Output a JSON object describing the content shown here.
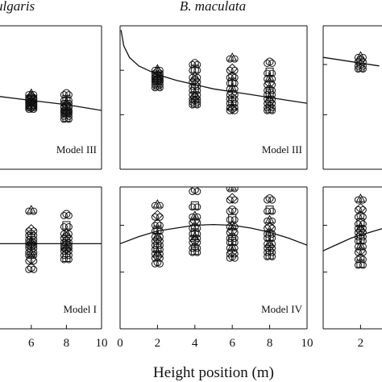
{
  "figure": {
    "species_left": "ulgaris",
    "species_center": "B. maculata",
    "xlabel": "Height position (m)"
  },
  "chart_data": [
    {
      "type": "scatter",
      "id": "top-left",
      "annotation": "Model III",
      "xlim": [
        0,
        10
      ],
      "x_ticks": [],
      "x_tick_labels": [],
      "points": [
        {
          "x": 6,
          "ys": [
            0.53,
            0.51,
            0.5,
            0.49,
            0.48,
            0.47,
            0.46,
            0.45,
            0.44,
            0.43
          ]
        },
        {
          "x": 8,
          "ys": [
            0.53,
            0.49,
            0.47,
            0.45,
            0.44,
            0.42,
            0.41,
            0.4,
            0.38,
            0.36
          ]
        }
      ],
      "curve": {
        "x": [
          0,
          2,
          4,
          6,
          8,
          10
        ],
        "y": [
          0.6,
          0.55,
          0.51,
          0.48,
          0.45,
          0.41
        ]
      }
    },
    {
      "type": "scatter",
      "id": "top-center",
      "annotation": "Model III",
      "xlim": [
        0,
        10
      ],
      "x_ticks": [],
      "x_tick_labels": [],
      "points": [
        {
          "x": 2,
          "ys": [
            0.7,
            0.68,
            0.66,
            0.65,
            0.64,
            0.63,
            0.62,
            0.6,
            0.58
          ]
        },
        {
          "x": 4,
          "ys": [
            0.74,
            0.7,
            0.65,
            0.62,
            0.59,
            0.56,
            0.53,
            0.5,
            0.48,
            0.46
          ]
        },
        {
          "x": 6,
          "ys": [
            0.78,
            0.7,
            0.65,
            0.61,
            0.57,
            0.53,
            0.5,
            0.47,
            0.44,
            0.42
          ]
        },
        {
          "x": 8,
          "ys": [
            0.75,
            0.68,
            0.64,
            0.6,
            0.56,
            0.53,
            0.5,
            0.47,
            0.44,
            0.42
          ]
        }
      ],
      "curve": {
        "x": [
          0.05,
          0.2,
          0.5,
          1,
          1.5,
          2,
          3,
          4,
          5,
          6,
          7,
          8,
          9,
          10
        ],
        "y": [
          0.97,
          0.86,
          0.78,
          0.72,
          0.69,
          0.66,
          0.62,
          0.59,
          0.56,
          0.54,
          0.52,
          0.5,
          0.48,
          0.46
        ]
      }
    },
    {
      "type": "scatter",
      "id": "top-right",
      "annotation": "",
      "xlim": [
        0,
        10
      ],
      "x_ticks": [],
      "x_tick_labels": [],
      "points": [
        {
          "x": 2,
          "ys": [
            0.79,
            0.76,
            0.73,
            0.71
          ]
        }
      ],
      "curve": {
        "x": [
          0,
          1,
          2,
          3
        ],
        "y": [
          0.78,
          0.76,
          0.74,
          0.72
        ]
      }
    },
    {
      "type": "scatter",
      "id": "bottom-left",
      "annotation": "Model I",
      "xlim": [
        0,
        10
      ],
      "x_ticks": [
        6,
        8,
        10
      ],
      "x_tick_labels": [
        "6",
        "8",
        "10"
      ],
      "points": [
        {
          "x": 6,
          "ys": [
            0.84,
            0.7,
            0.67,
            0.64,
            0.62,
            0.6,
            0.58,
            0.55,
            0.53,
            0.49,
            0.43
          ]
        },
        {
          "x": 8,
          "ys": [
            0.81,
            0.73,
            0.68,
            0.65,
            0.62,
            0.6,
            0.58,
            0.56,
            0.53,
            0.5
          ]
        }
      ],
      "curve": {
        "x": [
          0,
          10
        ],
        "y": [
          0.6,
          0.6
        ]
      }
    },
    {
      "type": "scatter",
      "id": "bottom-center",
      "annotation": "Model IV",
      "xlim": [
        0,
        10
      ],
      "x_ticks": [
        0,
        2,
        4,
        6,
        8,
        10
      ],
      "x_tick_labels": [
        "0",
        "2",
        "4",
        "6",
        "8",
        "10"
      ],
      "points": [
        {
          "x": 2,
          "ys": [
            0.88,
            0.8,
            0.74,
            0.7,
            0.66,
            0.63,
            0.6,
            0.57,
            0.54,
            0.51,
            0.47
          ]
        },
        {
          "x": 4,
          "ys": [
            0.98,
            0.87,
            0.8,
            0.76,
            0.72,
            0.68,
            0.65,
            0.62,
            0.58,
            0.55
          ]
        },
        {
          "x": 6,
          "ys": [
            1.0,
            0.92,
            0.84,
            0.78,
            0.73,
            0.69,
            0.65,
            0.62,
            0.58,
            0.54,
            0.51
          ]
        },
        {
          "x": 8,
          "ys": [
            0.92,
            0.84,
            0.77,
            0.72,
            0.68,
            0.65,
            0.61,
            0.58,
            0.55,
            0.52
          ]
        }
      ],
      "curve": {
        "x": [
          0,
          1,
          2,
          3,
          4,
          5,
          6,
          7,
          8,
          9,
          10
        ],
        "y": [
          0.6,
          0.65,
          0.69,
          0.71,
          0.73,
          0.735,
          0.73,
          0.71,
          0.68,
          0.64,
          0.59
        ]
      }
    },
    {
      "type": "scatter",
      "id": "bottom-right",
      "annotation": "",
      "xlim": [
        0,
        10
      ],
      "x_ticks": [
        2
      ],
      "x_tick_labels": [
        "2"
      ],
      "points": [
        {
          "x": 2,
          "ys": [
            0.92,
            0.85,
            0.8,
            0.75,
            0.72,
            0.69,
            0.66,
            0.63,
            0.59,
            0.55,
            0.5,
            0.46
          ]
        }
      ],
      "curve": {
        "x": [
          0,
          0.5,
          1,
          1.5,
          2,
          2.5,
          3,
          3.5
        ],
        "y": [
          0.55,
          0.58,
          0.61,
          0.64,
          0.66,
          0.68,
          0.7,
          0.72
        ]
      }
    }
  ]
}
